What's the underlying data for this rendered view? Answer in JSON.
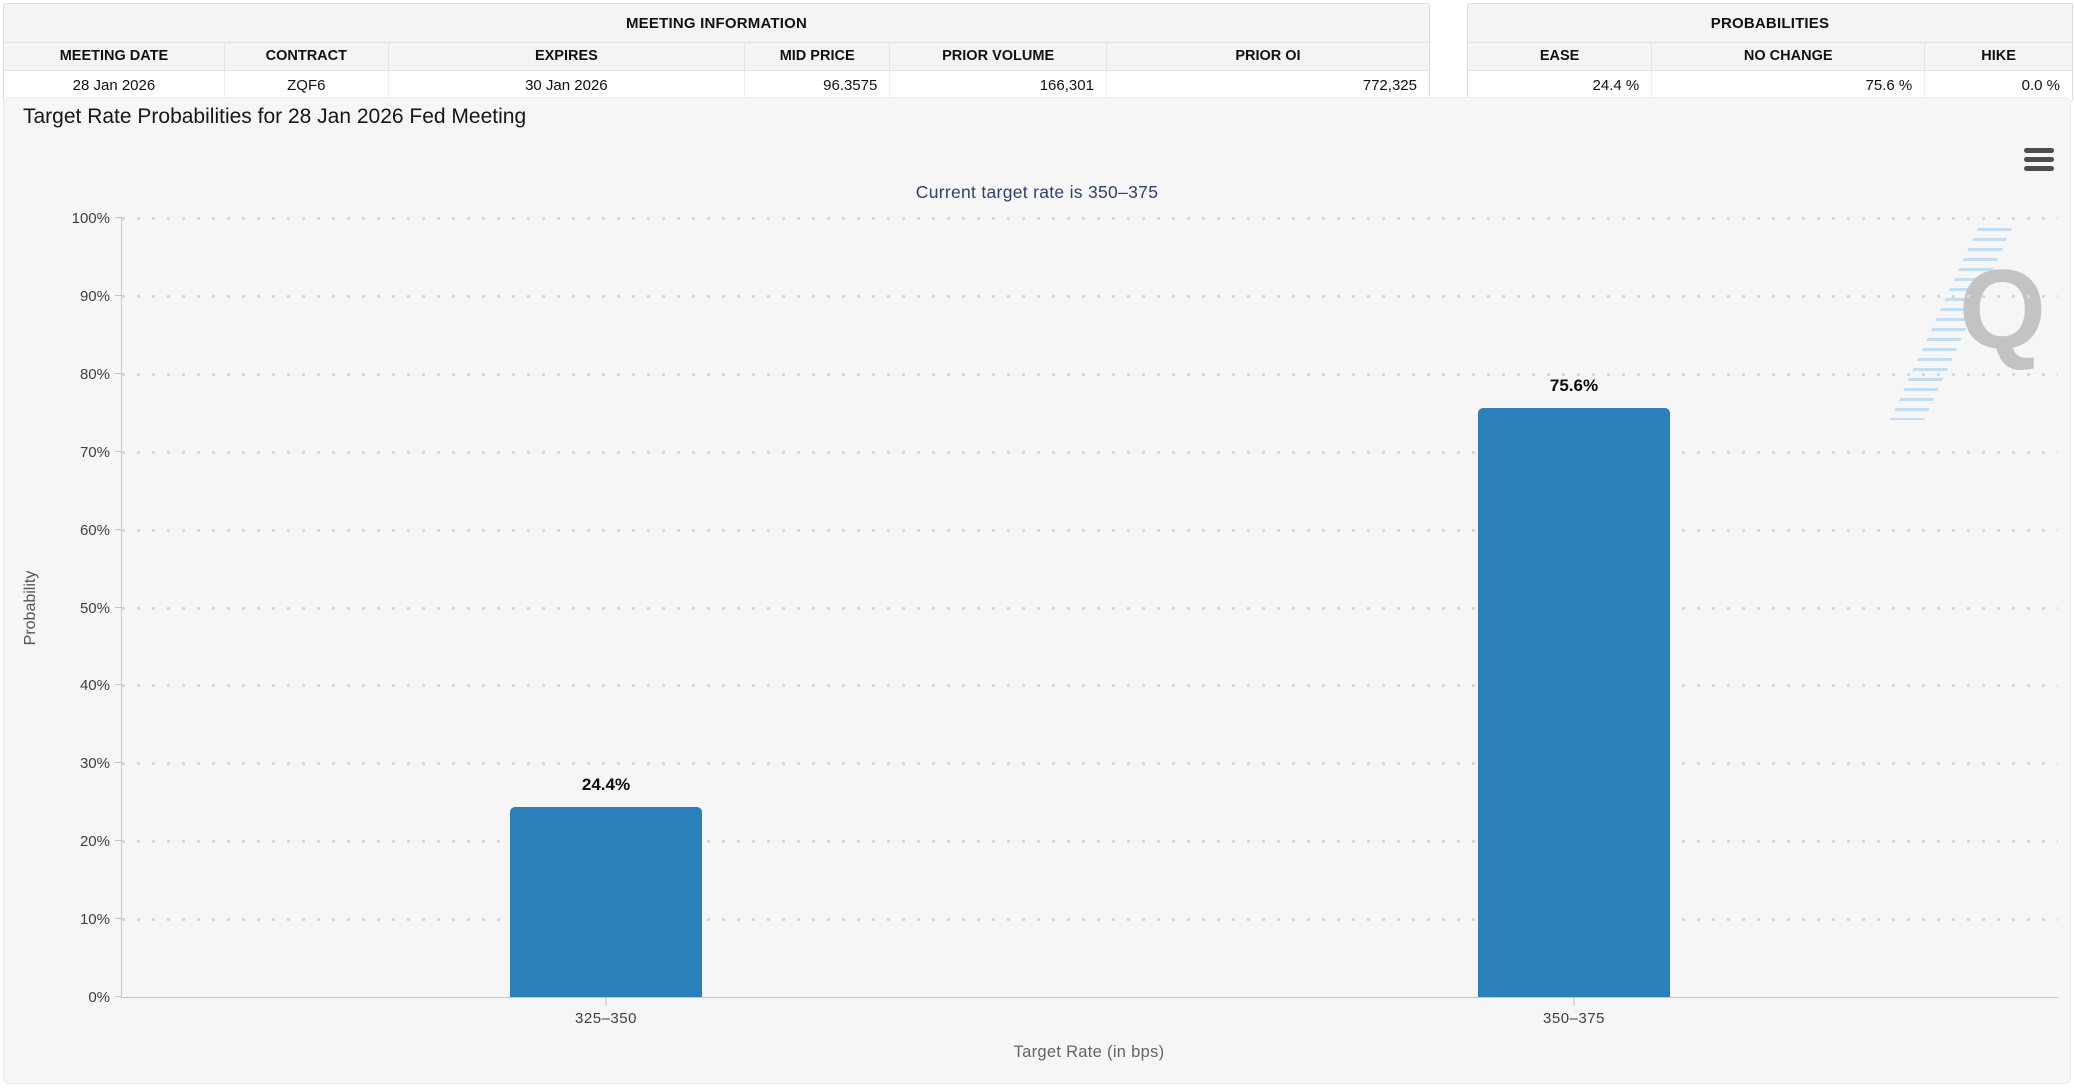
{
  "meeting_information": {
    "title": "MEETING INFORMATION",
    "columns": [
      "MEETING DATE",
      "CONTRACT",
      "EXPIRES",
      "MID PRICE",
      "PRIOR VOLUME",
      "PRIOR OI"
    ],
    "row": [
      "28 Jan 2026",
      "ZQF6",
      "30 Jan 2026",
      "96.3575",
      "166,301",
      "772,325"
    ]
  },
  "probabilities": {
    "title": "PROBABILITIES",
    "columns": [
      "EASE",
      "NO CHANGE",
      "HIKE"
    ],
    "row": [
      "24.4 %",
      "75.6 %",
      "0.0 %"
    ]
  },
  "chart": {
    "title": "Target Rate Probabilities for 28 Jan 2026 Fed Meeting",
    "subtitle": "Current target rate is 350–375",
    "menu_icon": "hamburger-menu-icon",
    "watermark_letter": "Q"
  },
  "chart_data": {
    "type": "bar",
    "title": "Target Rate Probabilities for 28 Jan 2026 Fed Meeting",
    "subtitle": "Current target rate is 350–375",
    "categories": [
      "325–350",
      "350–375"
    ],
    "values": [
      24.4,
      75.6
    ],
    "value_labels": [
      "24.4%",
      "75.6%"
    ],
    "xlabel": "Target Rate (in bps)",
    "ylabel": "Probability",
    "ylim": [
      0,
      100
    ],
    "ytick_step": 10,
    "ytick_suffix": "%",
    "grid": "dotted-horizontal",
    "legend": "none",
    "bar_color": "#2b80b9"
  },
  "colors": {
    "bar": "#2b80b9",
    "subtitle_text": "#2e3f6e",
    "card_background": "#f6f6f7",
    "table_header_background": "#f4f4f5",
    "axis_line": "#c7c7c7",
    "grid_dot": "#d8d8d8"
  }
}
